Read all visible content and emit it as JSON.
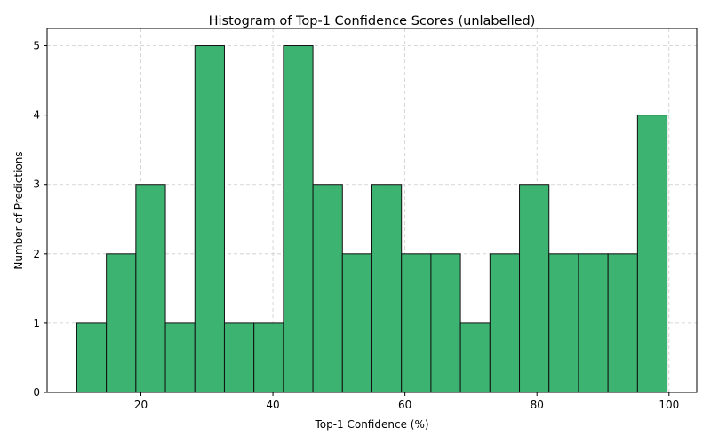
{
  "chart_data": {
    "type": "bar",
    "title": "Histogram of Top-1 Confidence Scores (unlabelled)",
    "xlabel": "Top-1 Confidence (%)",
    "ylabel": "Number of Predictions",
    "bin_edges": [
      10.3,
      14.77,
      19.24,
      23.71,
      28.18,
      32.65,
      37.12,
      41.59,
      46.06,
      50.53,
      55.0,
      59.47,
      63.94,
      68.41,
      72.88,
      77.35,
      81.82,
      86.29,
      90.76,
      95.23,
      99.7
    ],
    "values": [
      1,
      2,
      3,
      1,
      5,
      1,
      1,
      5,
      3,
      2,
      3,
      2,
      2,
      1,
      2,
      3,
      2,
      2,
      2,
      4
    ],
    "xlim": [
      5.8,
      104.2
    ],
    "ylim": [
      0,
      5.25
    ],
    "xticks": [
      20,
      40,
      60,
      80,
      100
    ],
    "yticks": [
      0,
      1,
      2,
      3,
      4,
      5
    ],
    "grid": true,
    "bar_color": "#3cb371",
    "edge_color": "#111111"
  }
}
